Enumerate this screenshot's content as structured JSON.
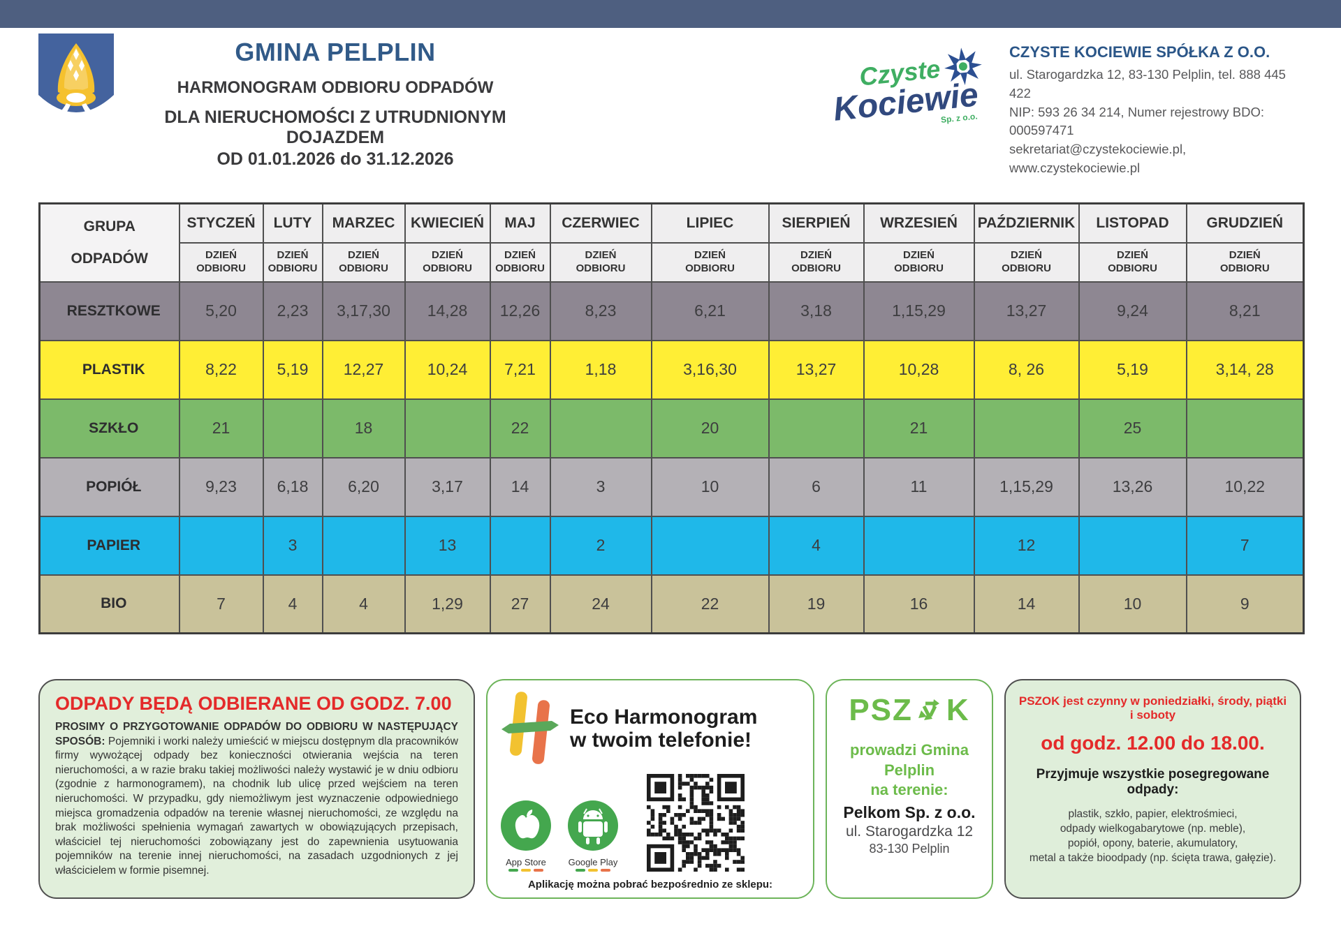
{
  "header": {
    "title": "GMINA PELPLIN",
    "subtitle1": "HARMONOGRAM ODBIORU ODPADÓW",
    "subtitle2": "DLA NIERUCHOMOŚCI Z UTRUDNIONYM DOJAZDEM",
    "subtitle3": "OD 01.01.2026 do 31.12.2026",
    "company": {
      "logo_word1": "Czyste",
      "logo_word2": "Kociewie",
      "logo_sub": "Sp. z o.o.",
      "name": "CZYSTE KOCIEWIE SPÓŁKA Z O.O.",
      "address_line": "ul. Starogardzka 12, 83-130 Pelplin, tel. 888 445 422",
      "nip_line": "NIP: 593 26 34 214, Numer rejestrowy BDO: 000597471",
      "email_line": "sekretariat@czystekociewie.pl,  www.czystekociewie.pl"
    }
  },
  "schedule": {
    "group_header_line1": "GRUPA",
    "group_header_line2": "ODPADÓW",
    "day_label": "DZIEŃ ODBIORU",
    "months": [
      "STYCZEŃ",
      "LUTY",
      "MARZEC",
      "KWIECIEŃ",
      "MAJ",
      "CZERWIEC",
      "LIPIEC",
      "SIERPIEŃ",
      "WRZESIEŃ",
      "PAŹDZIERNIK",
      "LISTOPAD",
      "GRUDZIEŃ"
    ],
    "rows": [
      {
        "group": "RESZTKOWE",
        "color": "#8e8792",
        "values": [
          "5,20",
          "2,23",
          "3,17,30",
          "14,28",
          "12,26",
          "8,23",
          "6,21",
          "3,18",
          "1,15,29",
          "13,27",
          "9,24",
          "8,21"
        ]
      },
      {
        "group": "PLASTIK",
        "color": "#ffee35",
        "values": [
          "8,22",
          "5,19",
          "12,27",
          "10,24",
          "7,21",
          "1,18",
          "3,16,30",
          "13,27",
          "10,28",
          "8, 26",
          "5,19",
          "3,14, 28"
        ]
      },
      {
        "group": "SZKŁO",
        "color": "#7cba6a",
        "values": [
          "21",
          "",
          "18",
          "",
          "22",
          "",
          "20",
          "",
          "21",
          "",
          "25",
          ""
        ]
      },
      {
        "group": "POPIÓŁ",
        "color": "#b4b1b6",
        "values": [
          "9,23",
          "6,18",
          "6,20",
          "3,17",
          "14",
          "3",
          "10",
          "6",
          "11",
          "1,15,29",
          "13,26",
          "10,22"
        ]
      },
      {
        "group": "PAPIER",
        "color": "#1fb8e9",
        "values": [
          "",
          "3",
          "",
          "13",
          "",
          "2",
          "",
          "4",
          "",
          "12",
          "",
          "7"
        ]
      },
      {
        "group": "BIO",
        "color": "#c9c29a",
        "values": [
          "7",
          "4",
          "4",
          "1,29",
          "27",
          "24",
          "22",
          "19",
          "16",
          "14",
          "10",
          "9"
        ]
      }
    ]
  },
  "info_box": {
    "heading": "ODPADY BĘDĄ ODBIERANE OD GODZ. 7.00",
    "bold_intro": "PROSIMY O PRZYGOTOWANIE ODPADÓW DO ODBIORU W NASTĘPUJĄCY SPOSÓB:",
    "body": "Pojemniki i worki należy umieścić w miejscu dostępnym dla pracowników firmy wywożącej odpady bez konieczności otwierania wejścia na teren nieruchomości, a w razie braku takiej możliwości należy wystawić je w dniu odbioru (zgodnie z harmonogramem), na chodnik lub ulicę przed wejściem na teren nieruchomości. W przypadku, gdy niemożliwym jest wyznaczenie odpowiedniego miejsca gromadzenia odpadów na terenie własnej nieruchomości, ze względu na brak możliwości spełnienia wymagań zawartych w obowiązujących przepisach, właściciel tej nieruchomości zobowiązany jest do zapewnienia usytuowania pojemników na terenie innej nieruchomości, na zasadach uzgodnionych z jej właścicielem w formie pisemnej."
  },
  "eco_box": {
    "title_line1": "Eco Harmonogram",
    "title_line2": "w twoim telefonie!",
    "appstore_label": "App Store",
    "googleplay_label": "Google Play",
    "caption": "Aplikację można pobrać bezpośrednio ze sklepu:"
  },
  "pszok_box": {
    "logo_left": "PSZ",
    "logo_right": "K",
    "line1": "prowadzi Gmina Pelplin",
    "line2": "na terenie:",
    "line3": "Pelkom Sp. z o.o.",
    "line4": "ul. Starogardzka 12",
    "line5": "83-130 Pelplin"
  },
  "hours_box": {
    "line1": "PSZOK jest czynny w poniedziałki, środy, piątki i soboty",
    "line2": "od godz. 12.00 do 18.00.",
    "line3": "Przyjmuje wszystkie posegregowane odpady:",
    "items_line1": "plastik, szkło, papier, elektrośmieci,",
    "items_line2": "odpady wielkogabarytowe (np. meble),",
    "items_line3": "popiół, opony, baterie, akumulatory,",
    "items_line4": "metal a także bioodpady (np. ścięta trawa, gałęzie)."
  },
  "colors": {
    "topbar": "#4e5f80",
    "title_blue": "#315a88",
    "accent_red": "#e42a2a",
    "green_border": "#6db45a",
    "pszok_green": "#6cbb4a",
    "resztkowe": "#8e8792",
    "plastik": "#ffee35",
    "szklo": "#7cba6a",
    "popiol": "#b4b1b6",
    "papier": "#1fb8e9",
    "bio": "#c9c29a"
  }
}
